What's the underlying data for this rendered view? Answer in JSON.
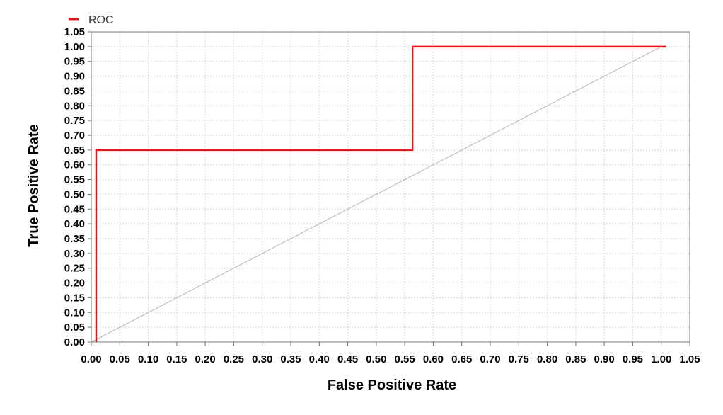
{
  "chart_data": {
    "type": "line",
    "title": "",
    "xlabel": "False Positive Rate",
    "ylabel": "True Positive Rate",
    "xlim": [
      0,
      1.05
    ],
    "ylim": [
      0,
      1.05
    ],
    "xticks": [
      "0.00",
      "0.05",
      "0.10",
      "0.15",
      "0.20",
      "0.25",
      "0.30",
      "0.35",
      "0.40",
      "0.45",
      "0.50",
      "0.55",
      "0.60",
      "0.65",
      "0.70",
      "0.75",
      "0.80",
      "0.85",
      "0.90",
      "0.95",
      "1.00",
      "1.05"
    ],
    "yticks": [
      "0.00",
      "0.05",
      "0.10",
      "0.15",
      "0.20",
      "0.25",
      "0.30",
      "0.35",
      "0.40",
      "0.45",
      "0.50",
      "0.55",
      "0.60",
      "0.65",
      "0.70",
      "0.75",
      "0.80",
      "0.85",
      "0.90",
      "0.95",
      "1.00",
      "1.05"
    ],
    "grid": true,
    "legend": "top-left",
    "series": [
      {
        "name": "ROC",
        "color": "#e8141e",
        "x": [
          0.0,
          0.0,
          0.555,
          0.555,
          1.0
        ],
        "y": [
          0.0,
          0.65,
          0.65,
          1.0,
          1.0
        ]
      }
    ],
    "reference_line": {
      "color": "#b4b4b4",
      "x": [
        0.0,
        1.0
      ],
      "y": [
        0.0,
        1.0
      ]
    }
  }
}
